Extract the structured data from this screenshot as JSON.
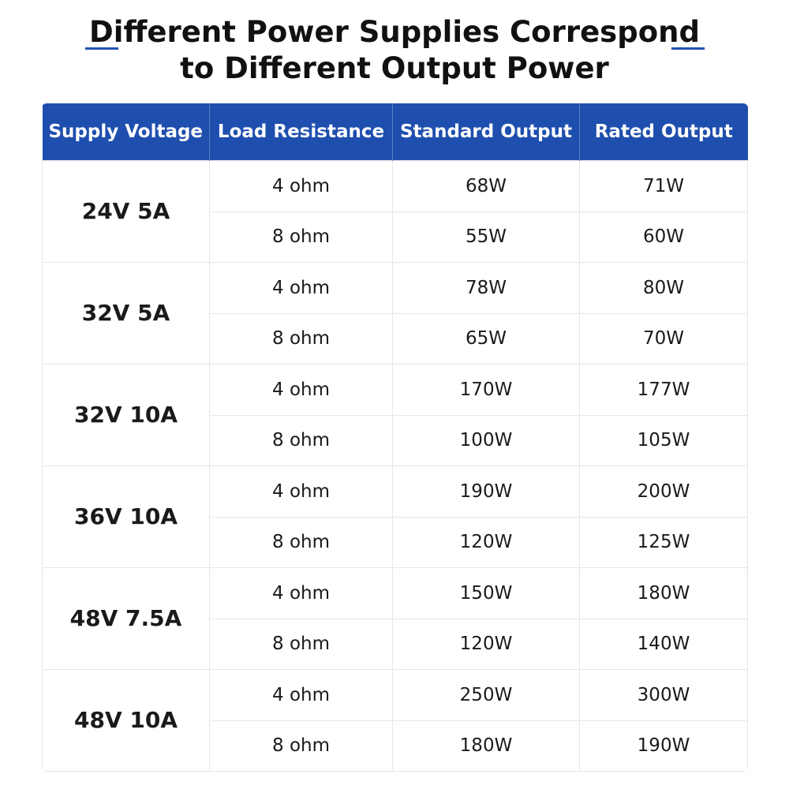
{
  "header": {
    "title_lines": [
      "Different Power Supplies Correspond",
      "to Different Output Power"
    ]
  },
  "table": {
    "columns": [
      "Supply Voltage",
      "Load Resistance",
      "Standard Output",
      "Rated Output"
    ],
    "groups": [
      {
        "supply": "24V 5A",
        "rows": [
          [
            "4 ohm",
            "68W",
            "71W"
          ],
          [
            "8 ohm",
            "55W",
            "60W"
          ]
        ]
      },
      {
        "supply": "32V 5A",
        "rows": [
          [
            "4 ohm",
            "78W",
            "80W"
          ],
          [
            "8 ohm",
            "65W",
            "70W"
          ]
        ]
      },
      {
        "supply": "32V 10A",
        "rows": [
          [
            "4 ohm",
            "170W",
            "177W"
          ],
          [
            "8 ohm",
            "100W",
            "105W"
          ]
        ]
      },
      {
        "supply": "36V 10A",
        "rows": [
          [
            "4 ohm",
            "190W",
            "200W"
          ],
          [
            "8 ohm",
            "120W",
            "125W"
          ]
        ]
      },
      {
        "supply": "48V 7.5A",
        "rows": [
          [
            "4 ohm",
            "150W",
            "180W"
          ],
          [
            "8 ohm",
            "120W",
            "140W"
          ]
        ]
      },
      {
        "supply": "48V 10A",
        "rows": [
          [
            "4 ohm",
            "250W",
            "300W"
          ],
          [
            "8 ohm",
            "180W",
            "190W"
          ]
        ]
      }
    ]
  }
}
